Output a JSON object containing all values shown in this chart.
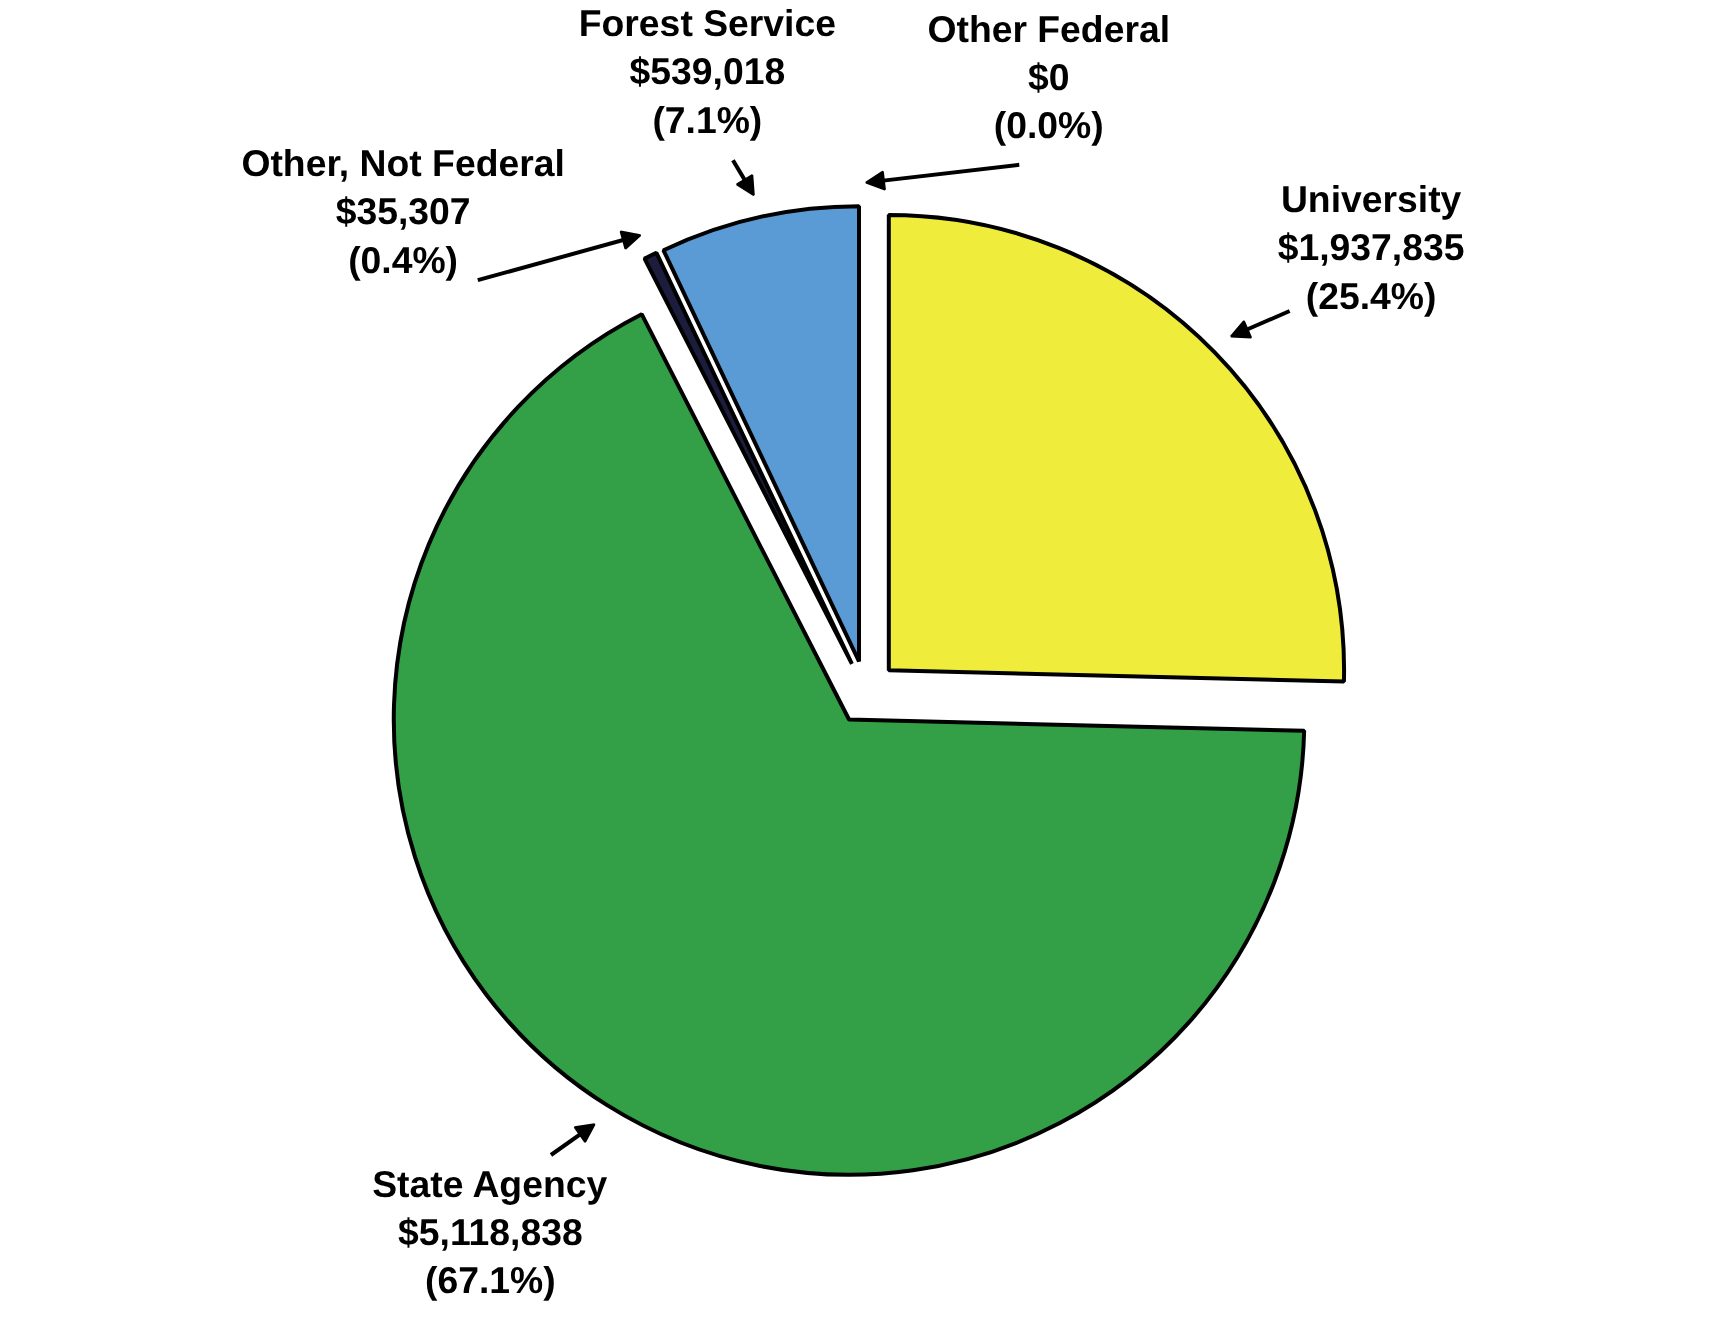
{
  "chart_data": {
    "type": "pie",
    "categories": [
      "University",
      "State Agency",
      "Other, Not Federal",
      "Forest Service",
      "Other Federal"
    ],
    "values": [
      1937835,
      5118838,
      35307,
      539018,
      0
    ],
    "colors": [
      "#f0ec3c",
      "#33a047",
      "#1c1c3c",
      "#5b9bd5",
      "#ffffff"
    ],
    "value_labels": [
      "$1,937,835\n(25.4%)",
      "$5,118,838\n(67.1%)",
      "$35,307\n(0.4%)",
      "$539,018\n(7.1%)",
      "$0\n(0.0%)"
    ]
  }
}
